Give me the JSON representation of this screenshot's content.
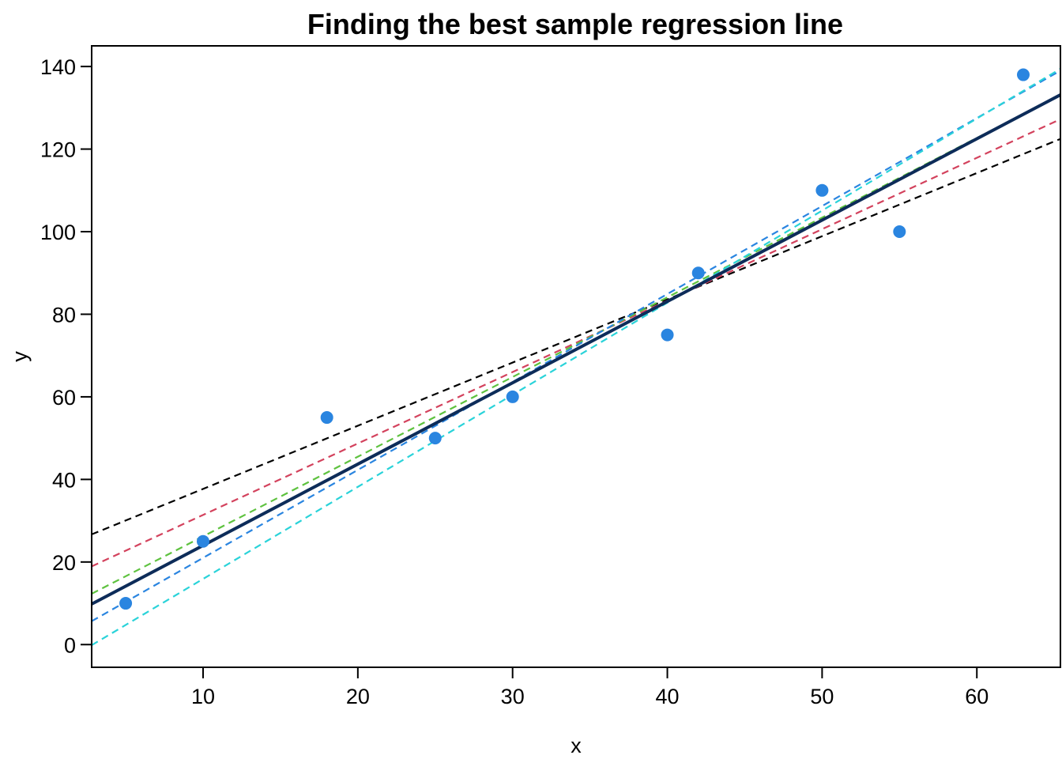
{
  "chart_data": {
    "type": "scatter",
    "title": "Finding the best sample regression line",
    "xlabel": "x",
    "ylabel": "y",
    "xlim": [
      2.8,
      65.4
    ],
    "ylim": [
      -5.5,
      145
    ],
    "x_ticks": [
      10,
      20,
      30,
      40,
      50,
      60
    ],
    "y_ticks": [
      0,
      20,
      40,
      60,
      80,
      100,
      120,
      140
    ],
    "grid": false,
    "point_color": "#2a85e0",
    "points": [
      {
        "x": 5,
        "y": 10
      },
      {
        "x": 10,
        "y": 25
      },
      {
        "x": 18,
        "y": 55
      },
      {
        "x": 25,
        "y": 50
      },
      {
        "x": 30,
        "y": 60
      },
      {
        "x": 40,
        "y": 75
      },
      {
        "x": 42,
        "y": 90
      },
      {
        "x": 50,
        "y": 110
      },
      {
        "x": 55,
        "y": 100
      },
      {
        "x": 63,
        "y": 138
      }
    ],
    "lines": [
      {
        "style": "dashed",
        "color": "#000000",
        "intercept": 22.4,
        "slope": 1.53
      },
      {
        "style": "dashed",
        "color": "#d3425d",
        "intercept": 14.1,
        "slope": 1.73
      },
      {
        "style": "dashed",
        "color": "#5ec23f",
        "intercept": 6.9,
        "slope": 1.93
      },
      {
        "style": "dashed",
        "color": "#2a85e0",
        "intercept": -0.3,
        "slope": 2.13
      },
      {
        "style": "dashed",
        "color": "#2ad3d9",
        "intercept": -6.4,
        "slope": 2.23
      },
      {
        "style": "solid",
        "color": "#0d2c59",
        "intercept": 4.3,
        "slope": 1.97
      }
    ]
  }
}
